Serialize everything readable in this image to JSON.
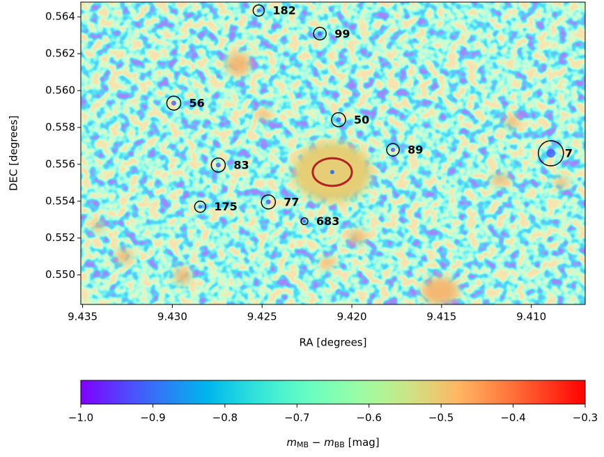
{
  "chart_data": {
    "type": "sky-image",
    "x_label": "RA [degrees]",
    "y_label": "DEC [degrees]",
    "xlim": [
      9.4351,
      9.407
    ],
    "ylim": [
      0.5484,
      0.5648
    ],
    "xticks": [
      9.435,
      {
        "value": 9.43,
        "label": "9.430"
      },
      9.425,
      {
        "value": 9.42,
        "label": "9.420"
      },
      9.415,
      {
        "value": 9.41,
        "label": "9.410"
      }
    ],
    "yticks": [
      {
        "value": 0.55,
        "label": "0.550"
      },
      0.552,
      0.554,
      0.556,
      0.558,
      {
        "value": 0.56,
        "label": "0.560"
      },
      0.562,
      0.564
    ],
    "colormap": "rainbow",
    "clim": [
      -1.0,
      -0.3
    ],
    "cticks": [
      {
        "value": -1.0,
        "label": "−1.0"
      },
      {
        "value": -0.9,
        "label": "−0.9"
      },
      {
        "value": -0.8,
        "label": "−0.8"
      },
      {
        "value": -0.7,
        "label": "−0.7"
      },
      {
        "value": -0.6,
        "label": "−0.6"
      },
      {
        "value": -0.5,
        "label": "−0.5"
      },
      {
        "value": -0.4,
        "label": "−0.4"
      },
      {
        "value": -0.3,
        "label": "−0.3"
      }
    ],
    "colorbar_label": {
      "var1": "m",
      "sub1": "MB",
      "op": " − ",
      "var2": "m",
      "sub2": "BB",
      "unit": " [mag]"
    },
    "sources": {
      "color": "#000000",
      "labels": [
        "182",
        "99",
        "56",
        "50",
        "89",
        "7",
        "83",
        "175",
        "77",
        "683"
      ],
      "ra": [
        9.42519,
        9.42178,
        9.42992,
        9.42074,
        9.41771,
        9.40891,
        9.42744,
        9.42845,
        9.42465,
        9.42264
      ],
      "dec": [
        0.56434,
        0.56309,
        0.55932,
        0.55842,
        0.55679,
        0.5566,
        0.55596,
        0.5537,
        0.55396,
        0.55291
      ],
      "radius": [
        0.00031,
        0.00035,
        0.00039,
        0.00039,
        0.00035,
        0.0007,
        0.00039,
        0.00031,
        0.00039,
        0.00019
      ]
    },
    "target": {
      "color": "#b22222",
      "ra": 9.42109,
      "dec": 0.55558,
      "radius_ra": 0.00109,
      "radius_dec": 0.00075
    }
  }
}
